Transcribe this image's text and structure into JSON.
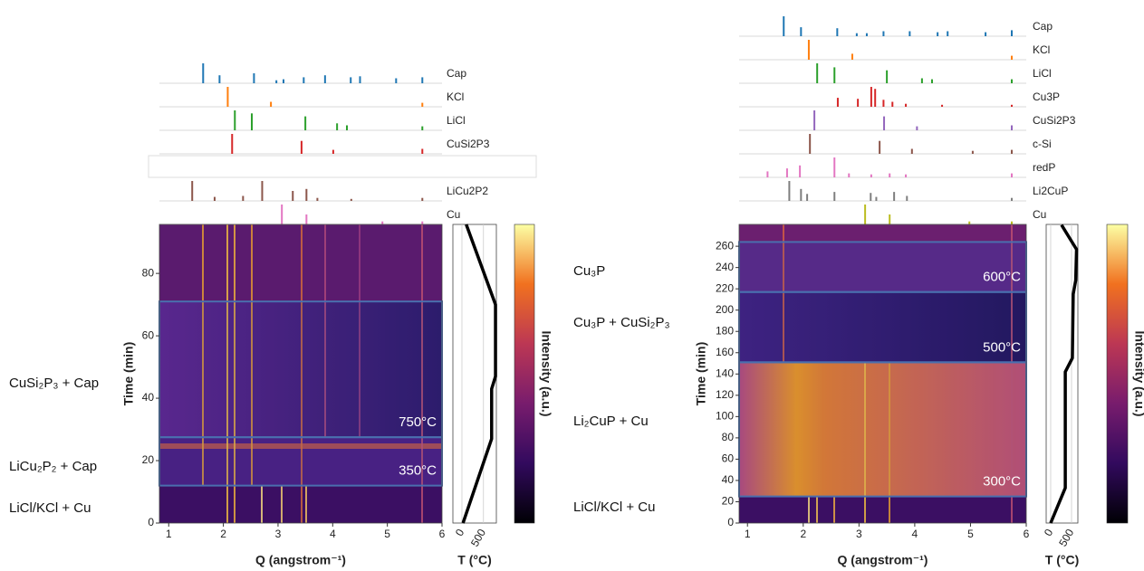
{
  "chart_data": [
    {
      "type": "heatmap",
      "xlabel": "Q (angstrom⁻¹)",
      "ylabel": "Time (min)",
      "xlim": [
        0.83,
        6
      ],
      "xticks": [
        1,
        2,
        3,
        4,
        5,
        6
      ],
      "ylim": [
        0,
        95.7
      ],
      "yticks": [
        0,
        20,
        40,
        60,
        80
      ],
      "colorbar_label": "Intensity (a.u.)",
      "regions": [
        {
          "label": "750°C",
          "time": [
            27.5,
            71
          ]
        },
        {
          "label": "350°C",
          "time": [
            12,
            27.5
          ]
        }
      ],
      "annotations": [
        "CuSi₂P₃ + Cap",
        "LiCu₂P₂ + Cap",
        "LiCl/KCl + Cu"
      ],
      "temperature": {
        "xlabel": "T (°C)",
        "xlim": [
          -210,
          800
        ],
        "xticks": [
          0,
          500
        ],
        "time": [
          0,
          27,
          43,
          47,
          70,
          95.7
        ],
        "temp": [
          25,
          690,
          690,
          780,
          780,
          100
        ]
      },
      "references": [
        {
          "name": "Cap",
          "color": "#1f77b4",
          "q": [
            1.63,
            1.93,
            2.56,
            2.97,
            3.1,
            3.47,
            3.86,
            4.33,
            4.5,
            5.16,
            5.64
          ],
          "intensity": [
            100,
            40,
            50,
            15,
            20,
            30,
            40,
            30,
            35,
            25,
            30
          ]
        },
        {
          "name": "KCl",
          "color": "#ff7f0e",
          "q": [
            2.08,
            2.87,
            5.64
          ],
          "intensity": [
            100,
            25,
            20
          ]
        },
        {
          "name": "LiCl",
          "color": "#2ca02c",
          "q": [
            2.21,
            2.52,
            3.5,
            4.08,
            4.26,
            5.64
          ],
          "intensity": [
            100,
            85,
            70,
            35,
            25,
            20
          ]
        },
        {
          "name": "CuSi2P3",
          "color": "#d62728",
          "q": [
            2.16,
            3.43,
            4.01,
            5.64
          ],
          "intensity": [
            100,
            65,
            20,
            25
          ]
        },
        {
          "name": null,
          "color": "#dddddd",
          "q": [],
          "intensity": []
        },
        {
          "name": "LiCu2P2",
          "color": "#8c564b",
          "q": [
            1.43,
            1.84,
            2.36,
            2.71,
            3.27,
            3.52,
            3.72,
            4.34,
            5.64
          ],
          "intensity": [
            100,
            20,
            25,
            100,
            50,
            60,
            15,
            10,
            15
          ]
        },
        {
          "name": "Cu",
          "color": "#e377c2",
          "q": [
            3.07,
            3.52,
            4.91,
            5.64
          ],
          "intensity": [
            100,
            50,
            15,
            15
          ]
        }
      ]
    },
    {
      "type": "heatmap",
      "xlabel": "Q (angstrom⁻¹)",
      "ylabel": "Time (min)",
      "xlim": [
        0.85,
        6
      ],
      "xticks": [
        1,
        2,
        3,
        4,
        5,
        6
      ],
      "ylim": [
        0,
        280.5
      ],
      "yticks": [
        0,
        20,
        40,
        60,
        80,
        100,
        120,
        140,
        160,
        180,
        200,
        220,
        240,
        260
      ],
      "colorbar_label": "Intensity (a.u.)",
      "regions": [
        {
          "label": "600°C",
          "time": [
            217,
            264
          ]
        },
        {
          "label": "500°C",
          "time": [
            151,
            217
          ]
        },
        {
          "label": "300°C",
          "time": [
            25,
            151
          ]
        }
      ],
      "annotations": [
        "Cu₃P",
        "Cu₃P + CuSi₂P₃",
        "Li₂CuP + Cu",
        "LiCl/KCl + Cu"
      ],
      "temperature": {
        "xlabel": "T (°C)",
        "xlim": [
          -108,
          652
        ],
        "xticks": [
          0,
          500
        ],
        "time": [
          0,
          33,
          142,
          155,
          215,
          228,
          257,
          280
        ],
        "temp": [
          0,
          350,
          350,
          520,
          540,
          600,
          620,
          260
        ]
      },
      "references": [
        {
          "name": "Cap",
          "color": "#1f77b4",
          "q": [
            1.65,
            1.96,
            2.61,
            2.96,
            3.14,
            3.44,
            3.91,
            4.41,
            4.59,
            5.27,
            5.74
          ],
          "intensity": [
            100,
            45,
            40,
            15,
            15,
            25,
            25,
            20,
            25,
            20,
            30
          ]
        },
        {
          "name": "KCl",
          "color": "#ff7f0e",
          "q": [
            2.1,
            2.88,
            5.74
          ],
          "intensity": [
            100,
            30,
            20
          ]
        },
        {
          "name": "LiCl",
          "color": "#2ca02c",
          "q": [
            2.25,
            2.56,
            3.5,
            4.13,
            4.31,
            5.74
          ],
          "intensity": [
            100,
            80,
            65,
            25,
            20,
            20
          ]
        },
        {
          "name": "Cu3P",
          "color": "#d62728",
          "q": [
            2.62,
            2.98,
            3.22,
            3.29,
            3.44,
            3.6,
            3.84,
            4.49,
            5.74
          ],
          "intensity": [
            45,
            40,
            100,
            90,
            35,
            25,
            15,
            10,
            10
          ]
        },
        {
          "name": "CuSi2P3",
          "color": "#9467bd",
          "q": [
            2.2,
            3.45,
            4.04,
            5.74
          ],
          "intensity": [
            100,
            70,
            20,
            25
          ]
        },
        {
          "name": "c-Si",
          "color": "#8c564b",
          "q": [
            2.12,
            3.37,
            3.95,
            5.04,
            5.74
          ],
          "intensity": [
            100,
            65,
            25,
            15,
            20
          ]
        },
        {
          "name": "redP",
          "color": "#e377c2",
          "q": [
            1.36,
            1.71,
            1.94,
            2.56,
            2.82,
            3.22,
            3.55,
            3.84,
            5.74
          ],
          "intensity": [
            30,
            45,
            60,
            100,
            20,
            15,
            20,
            15,
            20
          ]
        },
        {
          "name": "Li2CuP",
          "color": "#7f7f7f",
          "q": [
            1.75,
            1.96,
            2.07,
            2.56,
            3.21,
            3.31,
            3.63,
            3.86,
            5.74
          ],
          "intensity": [
            100,
            60,
            35,
            45,
            40,
            20,
            45,
            25,
            15
          ]
        },
        {
          "name": "Cu",
          "color": "#bcbd22",
          "q": [
            3.11,
            3.55,
            4.98,
            5.74
          ],
          "intensity": [
            100,
            50,
            15,
            15
          ]
        }
      ]
    }
  ]
}
